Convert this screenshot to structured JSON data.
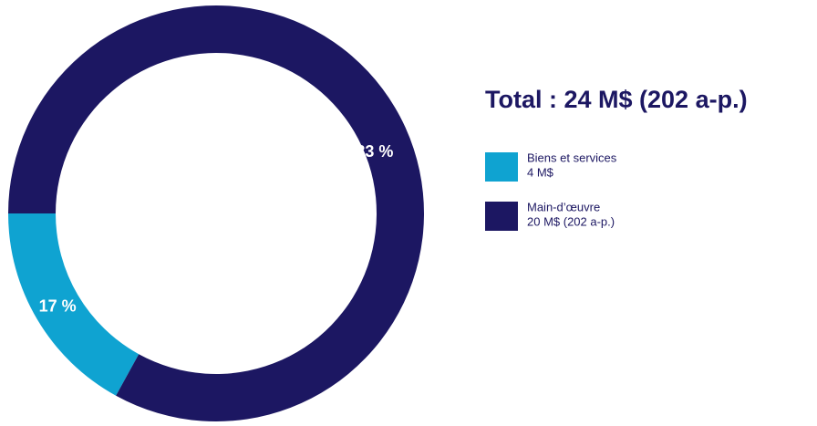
{
  "chart_data": {
    "type": "donut",
    "title": "Total : 24 M$ (202 a-p.)",
    "categories": [
      "Biens et services",
      "Main-d’œuvre"
    ],
    "legend_details": [
      "4 M$",
      "20 M$ (202 a-p.)"
    ],
    "values": [
      17,
      83
    ],
    "value_labels": [
      "17 %",
      "83 %"
    ],
    "colors": [
      "#0fa3d1",
      "#1c1762"
    ]
  }
}
